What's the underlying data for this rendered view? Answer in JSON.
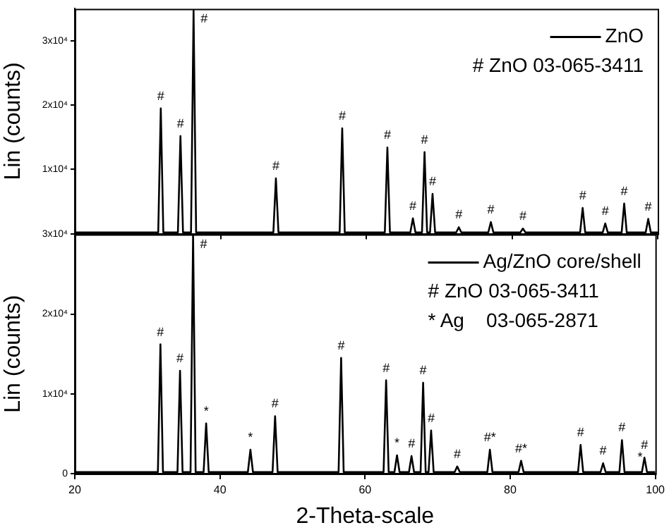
{
  "chart_data": [
    {
      "type": "line",
      "ylabel": "Lin (counts)",
      "xlim": [
        20,
        100
      ],
      "xticks": [
        20,
        40,
        60,
        80,
        100
      ],
      "ylim": [
        0,
        35000
      ],
      "yticks": [
        {
          "value": 0,
          "label": null
        },
        {
          "value": 10000,
          "label": "1x10⁴"
        },
        {
          "value": 20000,
          "label": "2x10⁴"
        },
        {
          "value": 30000,
          "label": "3x10⁴"
        }
      ],
      "tick_labels": "y",
      "grid": false,
      "legend": "top right",
      "marker": "none",
      "line_style": "solid",
      "series": [
        {
          "name": "ZnO",
          "color": "#000000",
          "x": [
            20,
            31.45,
            31.8,
            32.15,
            34.15,
            34.5,
            34.85,
            35.95,
            36.3,
            36.65,
            47.25,
            47.6,
            47.95,
            56.35,
            56.7,
            57.05,
            62.55,
            62.9,
            63.25,
            66.05,
            66.4,
            66.75,
            67.65,
            68.0,
            68.35,
            68.75,
            69.1,
            69.45,
            72.35,
            72.7,
            73.05,
            76.75,
            77.1,
            77.45,
            81.15,
            81.5,
            81.85,
            89.35,
            89.7,
            90.05,
            92.45,
            92.8,
            93.15,
            95.05,
            95.4,
            95.75,
            98.35,
            98.7,
            99.05,
            100
          ],
          "values": [
            200,
            200,
            19500,
            200,
            200,
            15200,
            200,
            200,
            34700,
            200,
            200,
            8600,
            200,
            200,
            16400,
            200,
            200,
            13400,
            200,
            200,
            2400,
            200,
            200,
            12700,
            200,
            200,
            6200,
            200,
            200,
            1000,
            200,
            200,
            1800,
            200,
            200,
            800,
            200,
            200,
            4000,
            200,
            200,
            1600,
            200,
            200,
            4700,
            200,
            200,
            2300,
            200,
            200
          ]
        }
      ],
      "annotations": [
        "# ZnO 03-065-3411",
        {
          "text": "#",
          "x": 31.8,
          "y": 19500
        },
        {
          "text": "#",
          "x": 34.5,
          "y": 15200
        },
        {
          "text": "#",
          "x": 36.3,
          "y": 34700
        },
        {
          "text": "#",
          "x": 47.6,
          "y": 8600
        },
        {
          "text": "#",
          "x": 56.7,
          "y": 16400
        },
        {
          "text": "#",
          "x": 62.9,
          "y": 13400
        },
        {
          "text": "#",
          "x": 66.4,
          "y": 2400
        },
        {
          "text": "#",
          "x": 68.0,
          "y": 12700
        },
        {
          "text": "#",
          "x": 69.1,
          "y": 6200
        },
        {
          "text": "#",
          "x": 72.7,
          "y": 1000
        },
        {
          "text": "#",
          "x": 77.1,
          "y": 1800
        },
        {
          "text": "#",
          "x": 81.5,
          "y": 800
        },
        {
          "text": "#",
          "x": 89.7,
          "y": 4000
        },
        {
          "text": "#",
          "x": 92.8,
          "y": 1600
        },
        {
          "text": "#",
          "x": 95.4,
          "y": 4700
        },
        {
          "text": "#",
          "x": 98.7,
          "y": 2300
        }
      ]
    },
    {
      "type": "line",
      "ylabel": "Lin (counts)",
      "xlabel": "2-Theta-scale",
      "xlim": [
        20,
        100
      ],
      "xticks": [
        20,
        40,
        60,
        80,
        100
      ],
      "ylim": [
        0,
        30000
      ],
      "yticks": [
        0,
        {
          "value": 10000,
          "label": "1x10⁴"
        },
        {
          "value": 20000,
          "label": "2x10⁴"
        },
        {
          "value": 30000,
          "label": "3x10⁴"
        }
      ],
      "grid": false,
      "legend": "top right",
      "marker": "none",
      "line_style": "solid",
      "series": [
        {
          "name": "Ag/ZnO core/shell",
          "color": "#000000",
          "x": [
            20,
            31.45,
            31.8,
            32.15,
            34.15,
            34.5,
            34.85,
            35.95,
            36.3,
            36.65,
            37.75,
            38.1,
            38.45,
            43.85,
            44.2,
            44.55,
            47.25,
            47.6,
            47.95,
            56.35,
            56.7,
            57.05,
            62.55,
            62.9,
            63.25,
            64.05,
            64.4,
            64.75,
            66.05,
            66.4,
            66.75,
            67.65,
            68.0,
            68.35,
            68.75,
            69.1,
            69.45,
            72.35,
            72.7,
            73.05,
            76.85,
            77.2,
            77.55,
            81.15,
            81.5,
            81.85,
            89.35,
            89.7,
            90.05,
            92.45,
            92.8,
            93.15,
            95.05,
            95.4,
            95.75,
            98.15,
            98.5,
            98.85,
            100
          ],
          "values": [
            200,
            200,
            16200,
            200,
            200,
            12900,
            200,
            200,
            30000,
            200,
            200,
            6300,
            200,
            200,
            3000,
            200,
            200,
            7200,
            200,
            200,
            14500,
            200,
            200,
            11700,
            200,
            200,
            2300,
            200,
            200,
            2200,
            200,
            200,
            11400,
            200,
            200,
            5400,
            200,
            200,
            900,
            200,
            200,
            3000,
            200,
            200,
            1600,
            200,
            200,
            3600,
            200,
            200,
            1300,
            200,
            200,
            4200,
            200,
            200,
            2000,
            200,
            200
          ]
        }
      ],
      "annotations": [
        "# ZnO 03-065-3411",
        "* Ag    03-065-2871",
        {
          "text": "#",
          "x": 31.8,
          "y": 16200
        },
        {
          "text": "#",
          "x": 34.5,
          "y": 12900
        },
        {
          "text": "#",
          "x": 36.3,
          "y": 30000
        },
        {
          "text": "*",
          "x": 38.1,
          "y": 6300
        },
        {
          "text": "*",
          "x": 44.2,
          "y": 3000
        },
        {
          "text": "#",
          "x": 47.6,
          "y": 7200
        },
        {
          "text": "#",
          "x": 56.7,
          "y": 14500
        },
        {
          "text": "#",
          "x": 62.9,
          "y": 11700
        },
        {
          "text": "*",
          "x": 64.4,
          "y": 2300
        },
        {
          "text": "#",
          "x": 66.4,
          "y": 2200
        },
        {
          "text": "#",
          "x": 68.0,
          "y": 11400
        },
        {
          "text": "#",
          "x": 69.1,
          "y": 5400
        },
        {
          "text": "#",
          "x": 72.7,
          "y": 900
        },
        {
          "text": "#*",
          "x": 77.2,
          "y": 3000
        },
        {
          "text": "#*",
          "x": 81.5,
          "y": 1600
        },
        {
          "text": "#",
          "x": 89.7,
          "y": 3600
        },
        {
          "text": "#",
          "x": 92.8,
          "y": 1300
        },
        {
          "text": "#",
          "x": 95.4,
          "y": 4200
        },
        {
          "text": "*",
          "x": 97.9,
          "y": 500
        },
        {
          "text": "#",
          "x": 98.5,
          "y": 2000
        }
      ]
    }
  ]
}
